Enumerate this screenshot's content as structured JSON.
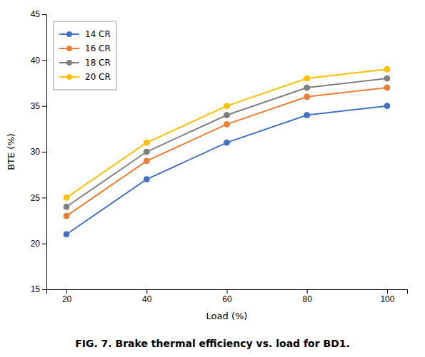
{
  "chart_data": {
    "type": "line",
    "xlabel": "Load (%)",
    "ylabel": "BTE (%)",
    "caption": "FIG. 7. Brake thermal efficiency vs. load for BD1.",
    "x": [
      20,
      40,
      60,
      80,
      100
    ],
    "series": [
      {
        "name": "14 CR",
        "color": "#4472C4",
        "values": [
          21,
          27,
          31,
          34,
          35
        ]
      },
      {
        "name": "16 CR",
        "color": "#ED7D31",
        "values": [
          23,
          29,
          33,
          36,
          37
        ]
      },
      {
        "name": "18 CR",
        "color": "#808080",
        "values": [
          24,
          30,
          34,
          37,
          38
        ]
      },
      {
        "name": "20 CR",
        "color": "#FFC000",
        "values": [
          25,
          31,
          35,
          38,
          39
        ]
      }
    ],
    "xlim": [
      15,
      105
    ],
    "ylim": [
      15,
      45
    ],
    "xticks": [
      20,
      40,
      60,
      80,
      100
    ],
    "yticks": [
      15,
      20,
      25,
      30,
      35,
      40,
      45
    ],
    "marker": "circle",
    "legend": "upper-left",
    "grid": false
  }
}
